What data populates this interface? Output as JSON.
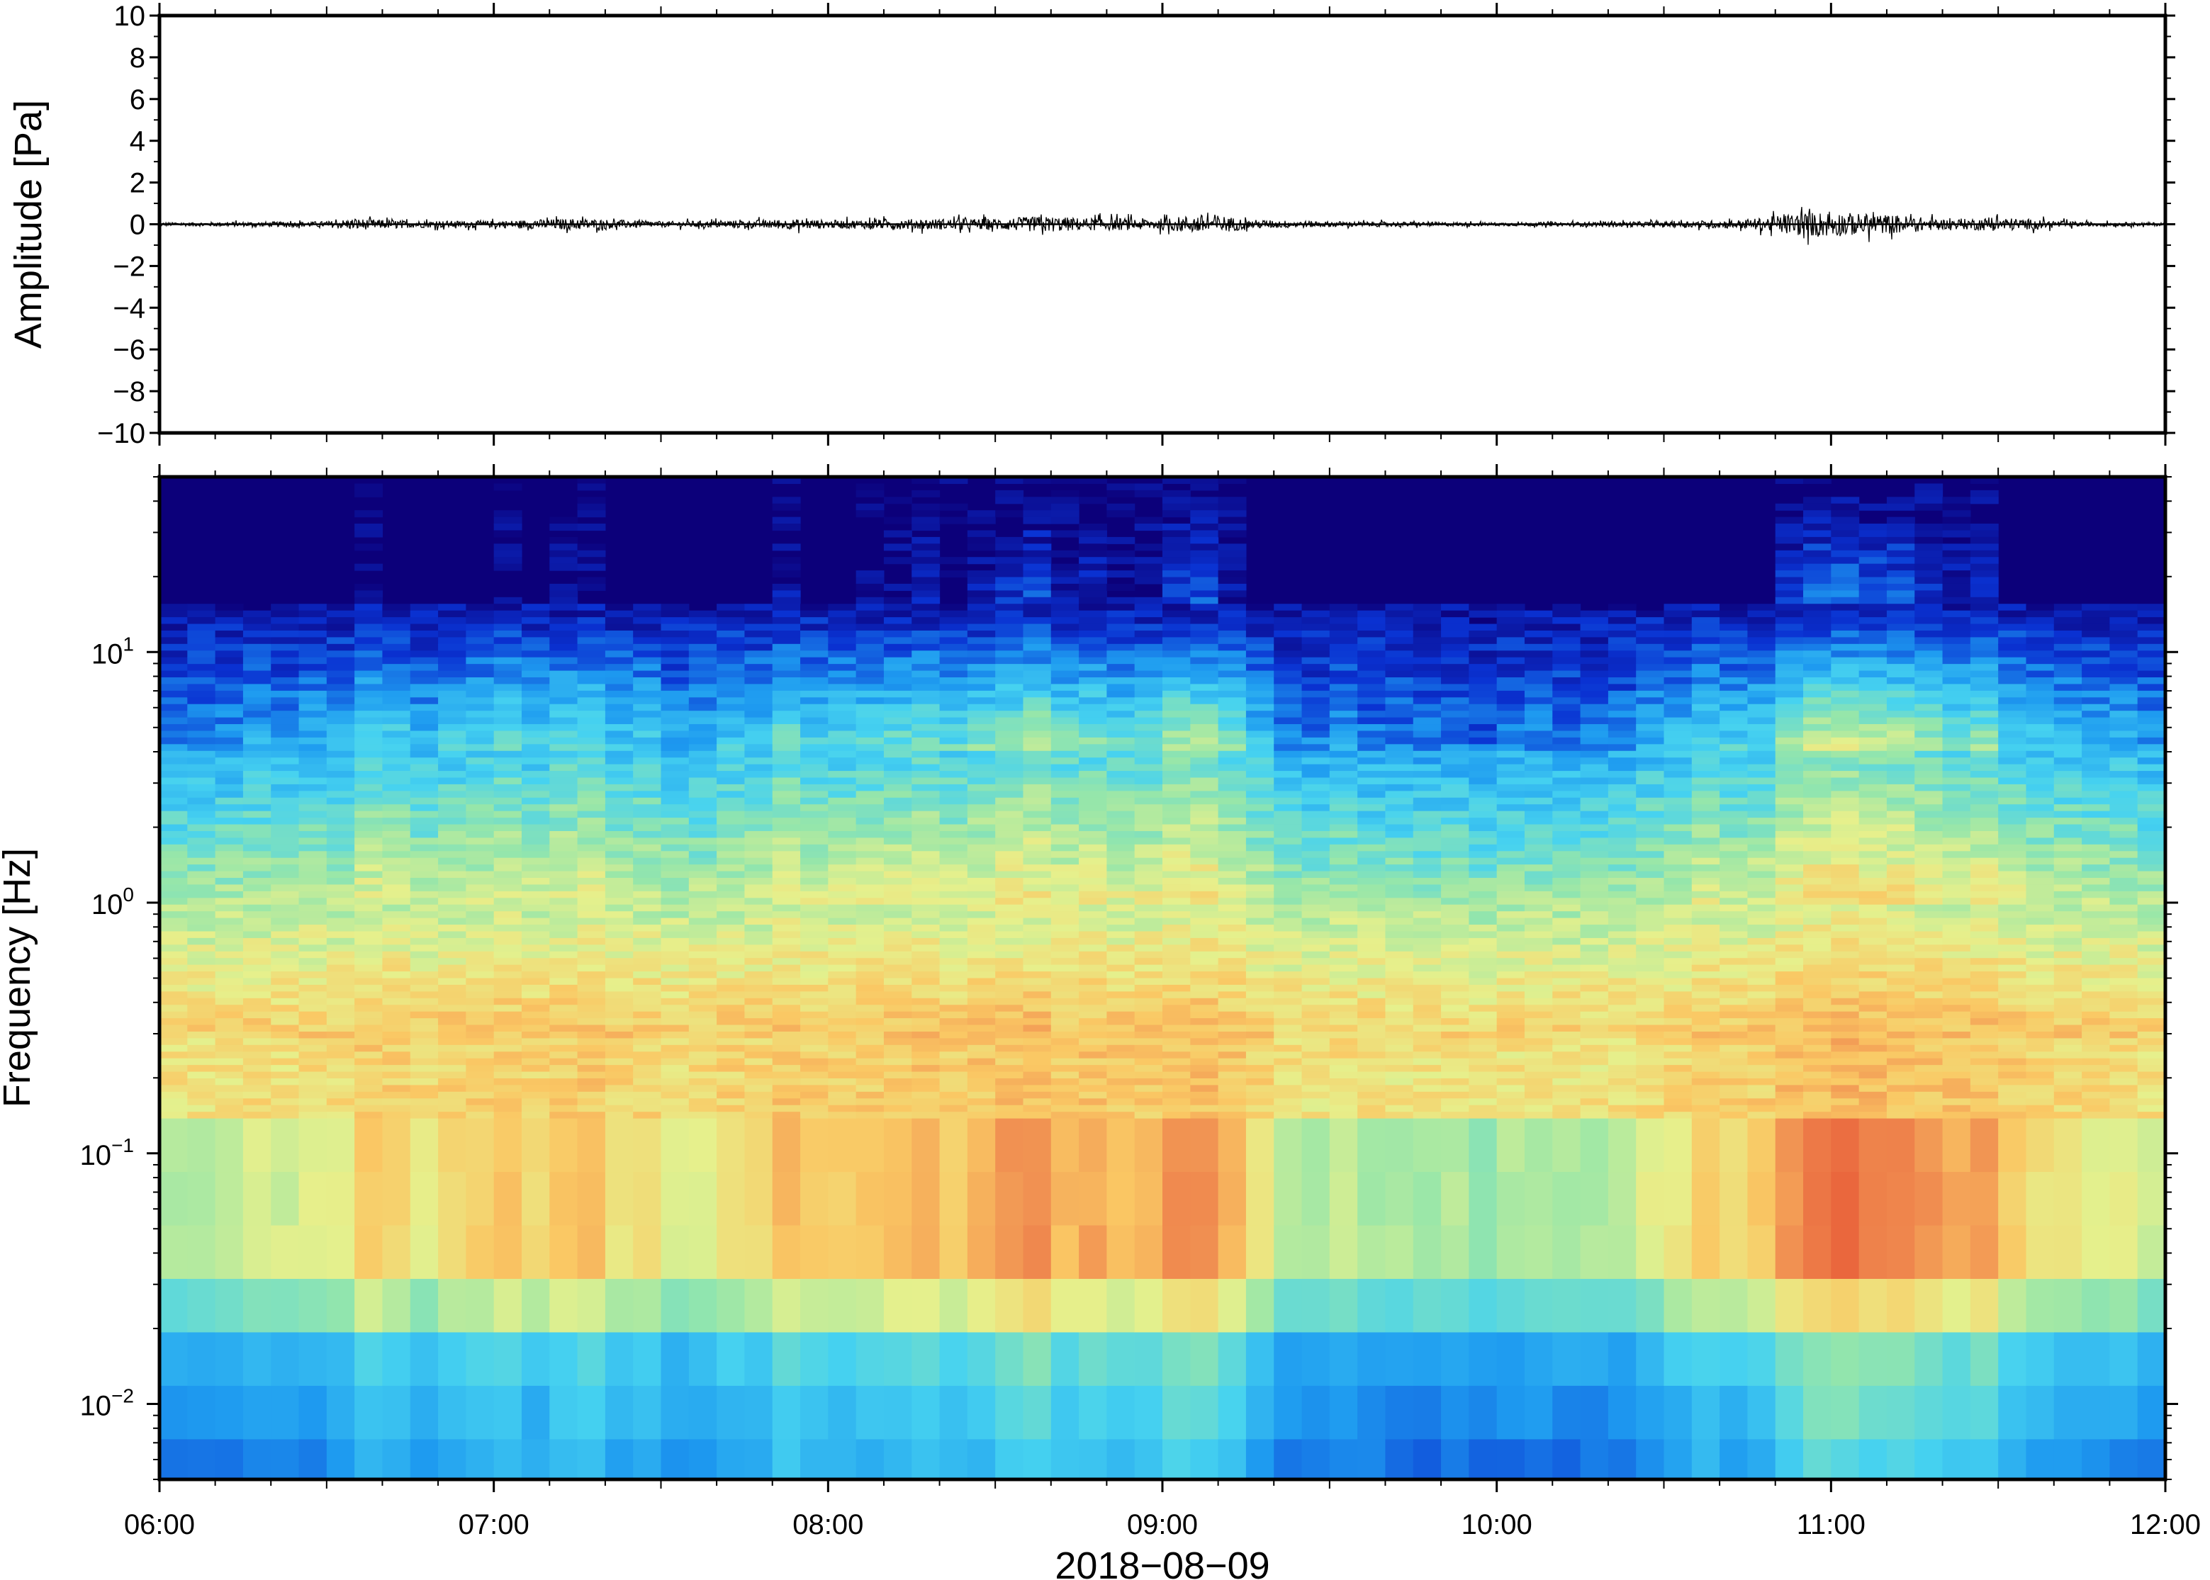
{
  "chart_data": [
    {
      "type": "line",
      "panel": "waveform",
      "ylabel": "Amplitude [Pa]",
      "ylim": [
        -10,
        10
      ],
      "yticks": [
        10,
        8,
        6,
        4,
        2,
        0,
        -2,
        -4,
        -6,
        -8,
        -10
      ],
      "ytick_labels": [
        "10",
        "8",
        "6",
        "4",
        "2",
        "0",
        "−2",
        "−4",
        "−6",
        "−8",
        "−10"
      ],
      "xlim_hours": [
        6,
        12
      ],
      "grid": false,
      "series": [
        {
          "line_color": "#000000",
          "x_hours": [
            6.0,
            6.25,
            6.5,
            6.58,
            6.75,
            7.0,
            7.25,
            7.5,
            7.75,
            7.92,
            8.0,
            8.25,
            8.5,
            8.65,
            8.75,
            9.0,
            9.1,
            9.15,
            9.25,
            9.5,
            9.75,
            10.0,
            10.25,
            10.5,
            10.75,
            10.9,
            11.0,
            11.1,
            11.2,
            11.35,
            11.5,
            11.75,
            12.0
          ],
          "envelope": [
            0.15,
            0.2,
            0.25,
            0.5,
            0.3,
            0.3,
            0.5,
            0.25,
            0.35,
            0.45,
            0.35,
            0.45,
            0.5,
            0.7,
            0.55,
            0.5,
            0.8,
            0.9,
            0.4,
            0.25,
            0.2,
            0.15,
            0.2,
            0.25,
            0.4,
            1.0,
            1.1,
            0.9,
            0.8,
            0.4,
            0.6,
            0.2,
            0.15
          ]
        }
      ]
    },
    {
      "type": "heatmap",
      "panel": "spectrogram",
      "ylabel": "Frequency [Hz]",
      "xlabel": "2018−08−09",
      "y_scale": "log",
      "ylim": [
        0.005,
        50
      ],
      "yticks": [
        0.01,
        0.1,
        1,
        10
      ],
      "ytick_labels": [
        {
          "base": "10",
          "exp": "−2"
        },
        {
          "base": "10",
          "exp": "−1"
        },
        {
          "base": "10",
          "exp": "0"
        },
        {
          "base": "10",
          "exp": "1"
        }
      ],
      "xlim_hours": [
        6,
        12
      ],
      "xticks_hours": [
        6,
        7,
        8,
        9,
        10,
        11,
        12
      ],
      "xtick_labels": [
        "06:00",
        "07:00",
        "08:00",
        "09:00",
        "10:00",
        "11:00",
        "12:00"
      ],
      "colormap": [
        "#0c007a",
        "#0a32d2",
        "#1e9bf0",
        "#46d2f0",
        "#96e6aa",
        "#e6f08c",
        "#fac864",
        "#f08c50",
        "#e65032"
      ],
      "time_columns": 72,
      "activity_x_hours": [
        6.0,
        6.25,
        6.5,
        6.6,
        6.75,
        7.0,
        7.25,
        7.4,
        7.6,
        7.85,
        8.0,
        8.25,
        8.5,
        8.7,
        8.9,
        9.1,
        9.22,
        9.35,
        9.5,
        9.7,
        9.9,
        10.1,
        10.3,
        10.5,
        10.75,
        10.95,
        11.1,
        11.25,
        11.5,
        11.75,
        12.0
      ],
      "activity": [
        0.35,
        0.4,
        0.45,
        0.7,
        0.6,
        0.62,
        0.72,
        0.55,
        0.5,
        0.7,
        0.68,
        0.75,
        0.82,
        0.85,
        0.8,
        0.9,
        0.85,
        0.35,
        0.4,
        0.3,
        0.3,
        0.32,
        0.35,
        0.55,
        0.7,
        0.95,
        0.98,
        0.85,
        0.75,
        0.6,
        0.4
      ]
    }
  ]
}
